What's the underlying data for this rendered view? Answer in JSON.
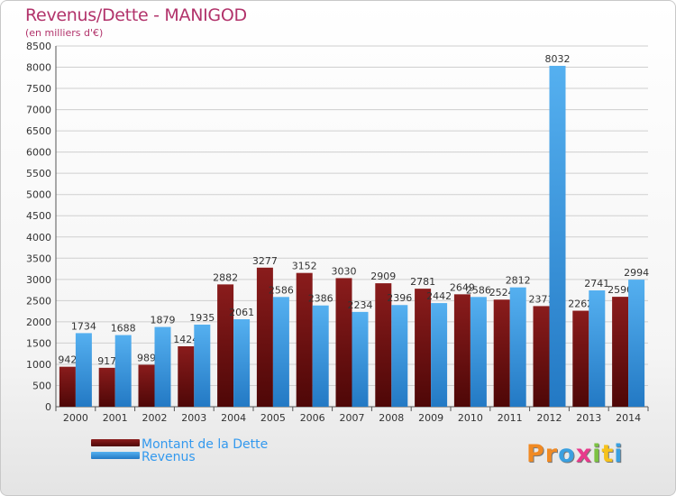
{
  "header": {
    "title": "Revenus/Dette - MANIGOD",
    "subtitle": "(en milliers d'€)"
  },
  "legend": {
    "dette_label": "Montant de la Dette",
    "revenus_label": "Revenus"
  },
  "brand": {
    "text": "Proxiti",
    "letters": [
      "P",
      "r",
      "o",
      "x",
      "i",
      "t",
      "i"
    ],
    "colors": [
      "#f08a24",
      "#f08a24",
      "#3aa0e0",
      "#e83a8c",
      "#7cc242",
      "#f6c21c",
      "#3aa0e0"
    ]
  },
  "colors": {
    "dette": "#7a1414",
    "revenus": "#3b9be4",
    "grid": "#cfcfcf",
    "axis_text": "#333333"
  },
  "chart_data": {
    "type": "bar",
    "title": "Revenus/Dette - MANIGOD",
    "subtitle": "(en milliers d'€)",
    "categories": [
      "2000",
      "2001",
      "2002",
      "2003",
      "2004",
      "2005",
      "2006",
      "2007",
      "2008",
      "2009",
      "2010",
      "2011",
      "2012",
      "2013",
      "2014"
    ],
    "series": [
      {
        "name": "Montant de la Dette",
        "values": [
          942,
          917,
          989,
          1424,
          2882,
          3277,
          3152,
          3030,
          2909,
          2781,
          2649,
          2524,
          2371,
          2262,
          2590
        ],
        "labels": [
          "942",
          "917",
          "989",
          "1424",
          "2882",
          "3277",
          "3152",
          "3030",
          "2909",
          "2781",
          "2649",
          "2524",
          "2371",
          "2262",
          "2590"
        ]
      },
      {
        "name": "Revenus",
        "values": [
          1734,
          1688,
          1879,
          1935,
          2061,
          2586,
          2386,
          2234,
          2396,
          2442,
          2586,
          2812,
          8032,
          2741,
          2994
        ],
        "labels": [
          "1734",
          "1688",
          "1879",
          "1935",
          "2061",
          "2586",
          "2386",
          "2234",
          "2396",
          "2442",
          "2586",
          "2812",
          "8032",
          "2741",
          "2994"
        ]
      }
    ],
    "ylim": [
      0,
      8500
    ],
    "yticks": [
      0,
      500,
      1000,
      1500,
      2000,
      2500,
      3000,
      3500,
      4000,
      4500,
      5000,
      5500,
      6000,
      6500,
      7000,
      7500,
      8000,
      8500
    ],
    "grid": true,
    "legend_position": "bottom-left"
  }
}
